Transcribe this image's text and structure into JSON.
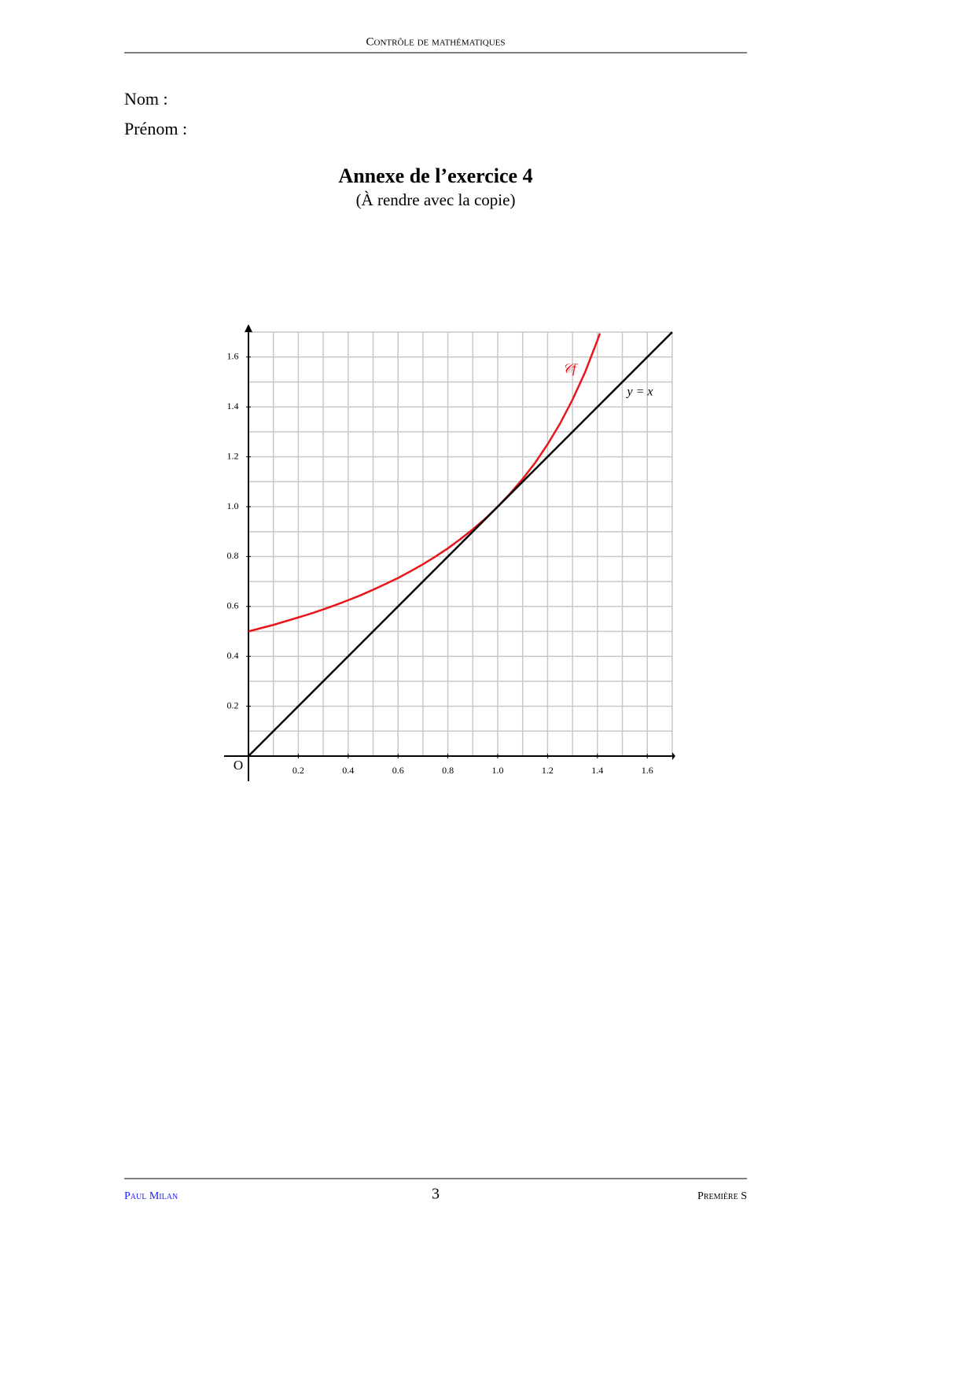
{
  "header": {
    "title": "Contrôle de mathématiques"
  },
  "fields": [
    "Nom :",
    "Prénom :"
  ],
  "annex": {
    "title": "Annexe de l’exercice 4",
    "subtitle": "(À rendre avec la copie)"
  },
  "chart_data": {
    "type": "line",
    "origin_label": "O",
    "xlim": [
      0,
      1.7
    ],
    "ylim": [
      0,
      1.7
    ],
    "xticks": [
      0.2,
      0.4,
      0.6,
      0.8,
      {
        "value": 1,
        "label": "1.0"
      },
      1.2,
      1.4,
      1.6
    ],
    "yticks": [
      0.2,
      0.4,
      0.6,
      0.8,
      {
        "value": 1,
        "label": "1.0"
      },
      1.2,
      1.4,
      1.6
    ],
    "xgrid": [
      0.1,
      0.2,
      0.3,
      0.4,
      0.5,
      0.6,
      0.7,
      0.8,
      0.9,
      1.0,
      1.1,
      1.2,
      1.3,
      1.4,
      1.5,
      1.6,
      1.7
    ],
    "ygrid": [
      0.1,
      0.2,
      0.3,
      0.4,
      0.5,
      0.6,
      0.7,
      0.8,
      0.9,
      1.0,
      1.1,
      1.2,
      1.3,
      1.4,
      1.5,
      1.6,
      1.7
    ],
    "series": [
      {
        "name": "𝒞f",
        "color": "#e8161b",
        "x": [
          0,
          0.05,
          0.1,
          0.15,
          0.2,
          0.25,
          0.3,
          0.35,
          0.4,
          0.45,
          0.5,
          0.55,
          0.6,
          0.65,
          0.7,
          0.75,
          0.8,
          0.85,
          0.9,
          0.95,
          1,
          1.05,
          1.1,
          1.15,
          1.2,
          1.25,
          1.3,
          1.35,
          1.4,
          1.41
        ],
        "values": [
          0.5,
          0.513,
          0.526,
          0.541,
          0.556,
          0.571,
          0.588,
          0.606,
          0.625,
          0.645,
          0.667,
          0.69,
          0.714,
          0.741,
          0.769,
          0.8,
          0.833,
          0.87,
          0.909,
          0.952,
          1,
          1.053,
          1.111,
          1.176,
          1.25,
          1.333,
          1.429,
          1.538,
          1.667,
          1.695
        ]
      },
      {
        "name": "y = x",
        "color": "#000000",
        "x": [
          0,
          1.7
        ],
        "values": [
          0,
          1.7
        ]
      }
    ]
  },
  "footer": {
    "author": "Paul Milan",
    "page": "3",
    "class": "Première S"
  }
}
